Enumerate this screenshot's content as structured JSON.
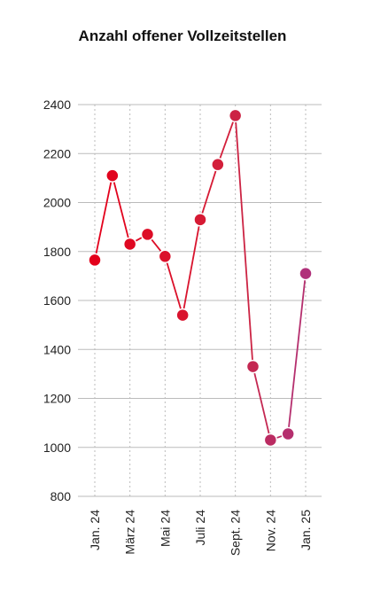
{
  "chart_data": {
    "type": "line",
    "title": "Anzahl offener Vollzeitstellen",
    "categories": [
      "Jan. 24",
      null,
      "März 24",
      null,
      "Mai 24",
      null,
      "Juli 24",
      null,
      "Sept. 24",
      null,
      "Nov. 24",
      null,
      "Jan. 25"
    ],
    "values": [
      1765,
      2110,
      1830,
      1870,
      1780,
      1540,
      1930,
      2155,
      2355,
      1330,
      1030,
      1055,
      1710
    ],
    "colors": [
      "#e3001b",
      "#e1041e",
      "#df0822",
      "#dd0c26",
      "#db102a",
      "#d9142e",
      "#d61a34",
      "#d31f3b",
      "#cc2444",
      "#c42852",
      "#bb2c62",
      "#b52f6e",
      "#b0317a"
    ],
    "ylim": [
      800,
      2400
    ],
    "yticks": [
      800,
      1000,
      1200,
      1400,
      1600,
      1800,
      2000,
      2200,
      2400
    ],
    "grid": true
  }
}
